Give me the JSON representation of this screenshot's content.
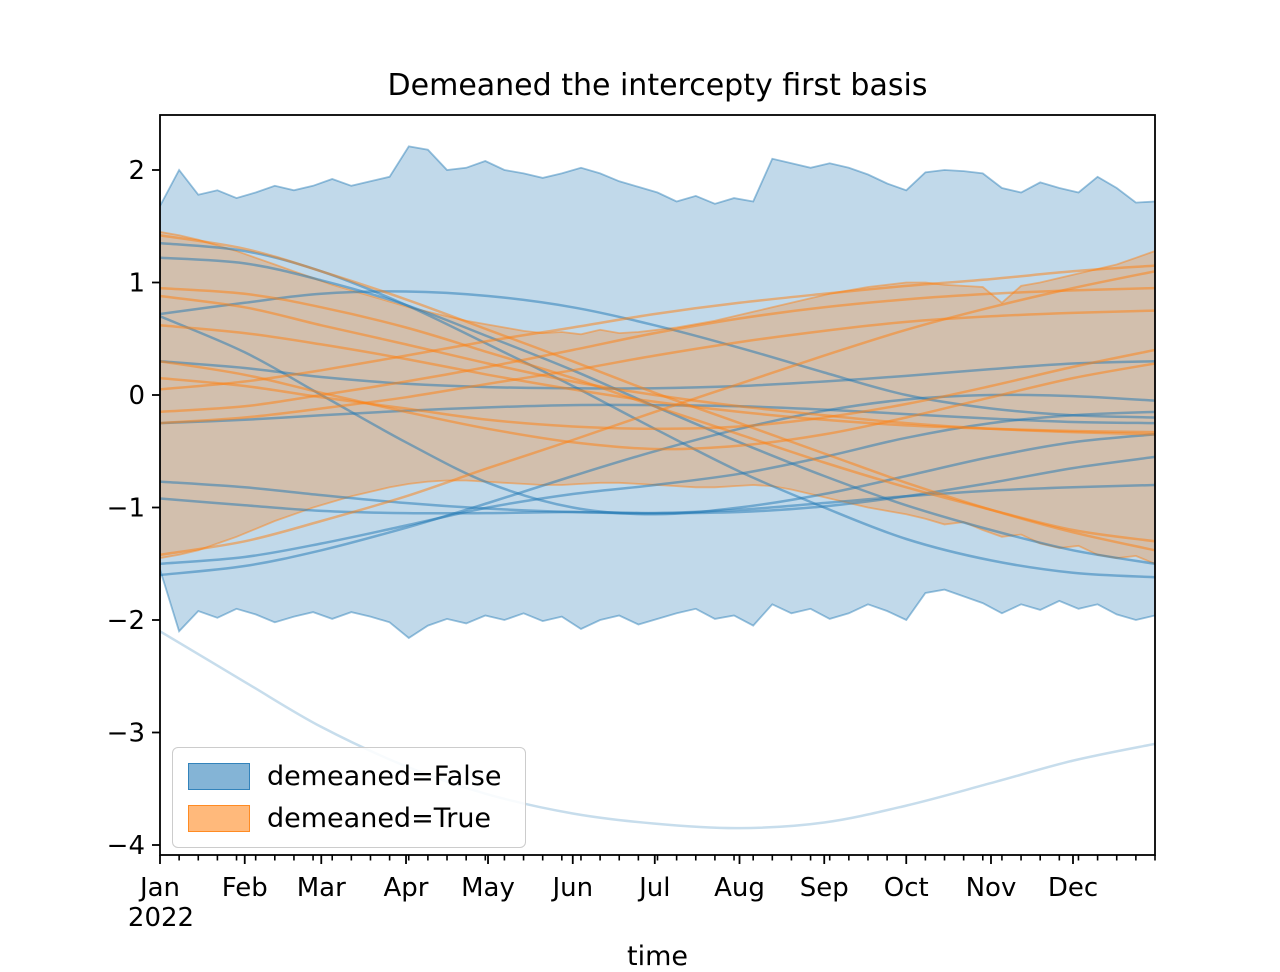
{
  "figure": {
    "title": "Demeaned the intercepty first basis",
    "x_label": "time",
    "year_label": "2022"
  },
  "legend": {
    "items": [
      {
        "label": "demeaned=False",
        "color": "#1f77b4"
      },
      {
        "label": "demeaned=True",
        "color": "#ff7f0e"
      }
    ],
    "position": "lower left"
  },
  "chart_data": {
    "type": "area",
    "title": "Demeaned the intercepty first basis",
    "xlabel": "time",
    "ylabel": "",
    "grid": false,
    "x_axis": {
      "year_label": "2022",
      "months": [
        "Jan",
        "Feb",
        "Mar",
        "Apr",
        "May",
        "Jun",
        "Jul",
        "Aug",
        "Sep",
        "Oct",
        "Nov",
        "Dec"
      ],
      "month_start_days": [
        0,
        31,
        59,
        90,
        120,
        151,
        181,
        212,
        243,
        273,
        304,
        334
      ],
      "month_sample_days": [
        0,
        31,
        59,
        90,
        120,
        151,
        181,
        212,
        243,
        273,
        304,
        334,
        364
      ],
      "total_days": 364,
      "minor_tick_interval_days": 7
    },
    "y_axis": {
      "ticks": [
        {
          "value": 2,
          "label": "2"
        },
        {
          "value": 1,
          "label": "1"
        },
        {
          "value": 0,
          "label": "0"
        },
        {
          "value": -1,
          "label": "−1"
        },
        {
          "value": -2,
          "label": "−2"
        },
        {
          "value": -3,
          "label": "−3"
        },
        {
          "value": -4,
          "label": "−4"
        }
      ],
      "min": -4.09,
      "max": 2.49
    },
    "series_groups": [
      {
        "name": "demeaned=False",
        "color": "#1f77b4",
        "band": {
          "x_days": [
            0,
            7,
            14,
            21,
            28,
            35,
            42,
            49,
            56,
            63,
            70,
            77,
            84,
            91,
            98,
            105,
            112,
            119,
            126,
            133,
            140,
            147,
            154,
            161,
            168,
            175,
            182,
            189,
            196,
            203,
            210,
            217,
            224,
            231,
            238,
            245,
            252,
            259,
            266,
            273,
            280,
            287,
            294,
            301,
            308,
            315,
            322,
            329,
            336,
            343,
            350,
            357,
            364
          ],
          "upper": [
            1.68,
            2.0,
            1.78,
            1.82,
            1.75,
            1.8,
            1.86,
            1.82,
            1.86,
            1.92,
            1.86,
            1.9,
            1.94,
            2.21,
            2.18,
            2.0,
            2.02,
            2.08,
            2.0,
            1.97,
            1.93,
            1.97,
            2.02,
            1.97,
            1.9,
            1.85,
            1.8,
            1.72,
            1.77,
            1.7,
            1.75,
            1.72,
            2.1,
            2.06,
            2.02,
            2.06,
            2.02,
            1.96,
            1.88,
            1.82,
            1.98,
            2.0,
            1.99,
            1.97,
            1.84,
            1.8,
            1.89,
            1.84,
            1.8,
            1.94,
            1.84,
            1.71,
            1.72
          ],
          "lower": [
            -1.55,
            -2.1,
            -1.92,
            -1.98,
            -1.9,
            -1.95,
            -2.02,
            -1.97,
            -1.93,
            -1.99,
            -1.93,
            -1.97,
            -2.02,
            -2.16,
            -2.05,
            -1.99,
            -2.03,
            -1.96,
            -2.0,
            -1.94,
            -2.01,
            -1.97,
            -2.08,
            -2.0,
            -1.96,
            -2.04,
            -1.99,
            -1.94,
            -1.9,
            -1.99,
            -1.96,
            -2.05,
            -1.86,
            -1.94,
            -1.9,
            -1.99,
            -1.94,
            -1.86,
            -1.92,
            -2.0,
            -1.76,
            -1.73,
            -1.79,
            -1.85,
            -1.94,
            -1.86,
            -1.91,
            -1.83,
            -1.9,
            -1.86,
            -1.95,
            -2.0,
            -1.96
          ]
        },
        "lines": [
          {
            "monthly_values": [
              1.35,
              1.28,
              1.1,
              0.8,
              0.45,
              0.08,
              -0.3,
              -0.68,
              -1.0,
              -1.28,
              -1.47,
              -1.58,
              -1.62
            ],
            "opacity": 0.5
          },
          {
            "monthly_values": [
              1.22,
              1.17,
              1.02,
              0.8,
              0.52,
              0.22,
              -0.1,
              -0.42,
              -0.72,
              -0.98,
              -1.2,
              -1.38,
              -1.5
            ],
            "opacity": 0.5
          },
          {
            "monthly_values": [
              0.72,
              0.82,
              0.9,
              0.92,
              0.88,
              0.78,
              0.62,
              0.42,
              0.2,
              0.0,
              -0.12,
              -0.18,
              -0.2
            ],
            "opacity": 0.5
          },
          {
            "monthly_values": [
              0.3,
              0.24,
              0.16,
              0.1,
              0.07,
              0.06,
              0.06,
              0.08,
              0.12,
              0.17,
              0.23,
              0.28,
              0.3
            ],
            "opacity": 0.5
          },
          {
            "monthly_values": [
              0.7,
              0.38,
              0.0,
              -0.42,
              -0.78,
              -1.0,
              -1.06,
              -1.0,
              -0.88,
              -0.72,
              -0.55,
              -0.42,
              -0.35
            ],
            "opacity": 0.5
          },
          {
            "monthly_values": [
              -0.77,
              -0.82,
              -0.89,
              -0.96,
              -1.01,
              -1.04,
              -1.05,
              -1.02,
              -0.96,
              -0.9,
              -0.85,
              -0.82,
              -0.8
            ],
            "opacity": 0.5
          },
          {
            "monthly_values": [
              -0.92,
              -0.98,
              -1.03,
              -1.05,
              -1.05,
              -1.04,
              -1.05,
              -1.04,
              -0.99,
              -0.9,
              -0.78,
              -0.65,
              -0.55
            ],
            "opacity": 0.5
          },
          {
            "monthly_values": [
              -1.6,
              -1.52,
              -1.38,
              -1.18,
              -0.96,
              -0.72,
              -0.5,
              -0.3,
              -0.14,
              -0.04,
              0.0,
              -0.01,
              -0.05
            ],
            "opacity": 0.5
          },
          {
            "monthly_values": [
              -1.5,
              -1.44,
              -1.32,
              -1.16,
              -1.0,
              -0.88,
              -0.8,
              -0.7,
              -0.55,
              -0.38,
              -0.25,
              -0.18,
              -0.15
            ],
            "opacity": 0.5
          },
          {
            "monthly_values": [
              -0.25,
              -0.22,
              -0.18,
              -0.14,
              -0.11,
              -0.09,
              -0.09,
              -0.1,
              -0.13,
              -0.17,
              -0.21,
              -0.24,
              -0.25
            ],
            "opacity": 0.5
          },
          {
            "monthly_values": [
              -2.1,
              -2.55,
              -2.95,
              -3.3,
              -3.55,
              -3.72,
              -3.81,
              -3.85,
              -3.8,
              -3.65,
              -3.45,
              -3.25,
              -3.1
            ],
            "opacity": 0.25
          }
        ]
      },
      {
        "name": "demeaned=True",
        "color": "#ff7f0e",
        "band": {
          "x_days": [
            0,
            7,
            14,
            21,
            28,
            35,
            42,
            49,
            56,
            63,
            70,
            77,
            84,
            91,
            98,
            105,
            112,
            119,
            126,
            133,
            140,
            147,
            154,
            161,
            168,
            175,
            182,
            189,
            196,
            203,
            210,
            217,
            224,
            231,
            238,
            245,
            252,
            259,
            266,
            273,
            280,
            287,
            294,
            301,
            308,
            315,
            322,
            329,
            336,
            343,
            350,
            357,
            364
          ],
          "upper": [
            1.45,
            1.42,
            1.38,
            1.33,
            1.28,
            1.22,
            1.16,
            1.1,
            1.04,
            0.98,
            0.93,
            0.88,
            0.83,
            0.78,
            0.74,
            0.7,
            0.66,
            0.63,
            0.6,
            0.57,
            0.55,
            0.56,
            0.54,
            0.58,
            0.55,
            0.56,
            0.58,
            0.6,
            0.63,
            0.66,
            0.7,
            0.74,
            0.78,
            0.82,
            0.86,
            0.9,
            0.93,
            0.96,
            0.98,
            1.0,
            1.0,
            0.98,
            0.97,
            0.96,
            0.82,
            0.97,
            1.0,
            1.04,
            1.08,
            1.12,
            1.16,
            1.22,
            1.28
          ],
          "lower": [
            -1.45,
            -1.42,
            -1.38,
            -1.32,
            -1.26,
            -1.19,
            -1.12,
            -1.06,
            -1.0,
            -0.95,
            -0.9,
            -0.86,
            -0.82,
            -0.79,
            -0.77,
            -0.76,
            -0.76,
            -0.77,
            -0.78,
            -0.79,
            -0.8,
            -0.8,
            -0.79,
            -0.78,
            -0.78,
            -0.79,
            -0.8,
            -0.81,
            -0.82,
            -0.82,
            -0.81,
            -0.8,
            -0.81,
            -0.84,
            -0.88,
            -0.92,
            -0.96,
            -1.0,
            -1.03,
            -1.06,
            -1.1,
            -1.15,
            -1.13,
            -1.2,
            -1.26,
            -1.24,
            -1.32,
            -1.36,
            -1.34,
            -1.42,
            -1.45,
            -1.43,
            -1.5
          ]
        },
        "lines": [
          {
            "monthly_values": [
              1.42,
              1.3,
              1.1,
              0.85,
              0.58,
              0.3,
              0.02,
              -0.25,
              -0.52,
              -0.78,
              -1.02,
              -1.22,
              -1.38
            ],
            "opacity": 0.5
          },
          {
            "monthly_values": [
              0.95,
              0.9,
              0.78,
              0.6,
              0.38,
              0.15,
              -0.1,
              -0.35,
              -0.6,
              -0.82,
              -1.02,
              -1.2,
              -1.3
            ],
            "opacity": 0.5
          },
          {
            "monthly_values": [
              0.88,
              0.78,
              0.62,
              0.45,
              0.28,
              0.12,
              0.0,
              -0.1,
              -0.18,
              -0.25,
              -0.3,
              -0.33,
              -0.35
            ],
            "opacity": 0.5
          },
          {
            "monthly_values": [
              0.62,
              0.55,
              0.45,
              0.32,
              0.18,
              0.05,
              -0.06,
              -0.15,
              -0.22,
              -0.27,
              -0.3,
              -0.32,
              -0.33
            ],
            "opacity": 0.5
          },
          {
            "monthly_values": [
              0.3,
              0.18,
              0.02,
              -0.15,
              -0.3,
              -0.42,
              -0.48,
              -0.45,
              -0.35,
              -0.2,
              -0.02,
              0.15,
              0.28
            ],
            "opacity": 0.5
          },
          {
            "monthly_values": [
              0.05,
              0.12,
              0.22,
              0.35,
              0.48,
              0.6,
              0.72,
              0.82,
              0.9,
              0.97,
              1.03,
              1.1,
              1.15
            ],
            "opacity": 0.5
          },
          {
            "monthly_values": [
              -0.15,
              -0.1,
              0.0,
              0.12,
              0.25,
              0.4,
              0.55,
              0.68,
              0.78,
              0.85,
              0.9,
              0.93,
              0.95
            ],
            "opacity": 0.5
          },
          {
            "monthly_values": [
              -0.25,
              -0.2,
              -0.12,
              -0.02,
              0.1,
              0.22,
              0.35,
              0.47,
              0.57,
              0.65,
              0.7,
              0.73,
              0.75
            ],
            "opacity": 0.5
          },
          {
            "monthly_values": [
              -1.42,
              -1.3,
              -1.12,
              -0.9,
              -0.65,
              -0.4,
              -0.15,
              0.1,
              0.35,
              0.58,
              0.78,
              0.95,
              1.1
            ],
            "opacity": 0.5
          },
          {
            "monthly_values": [
              0.15,
              0.08,
              -0.02,
              -0.12,
              -0.22,
              -0.28,
              -0.3,
              -0.28,
              -0.2,
              -0.08,
              0.08,
              0.25,
              0.4
            ],
            "opacity": 0.5
          }
        ]
      }
    ]
  }
}
